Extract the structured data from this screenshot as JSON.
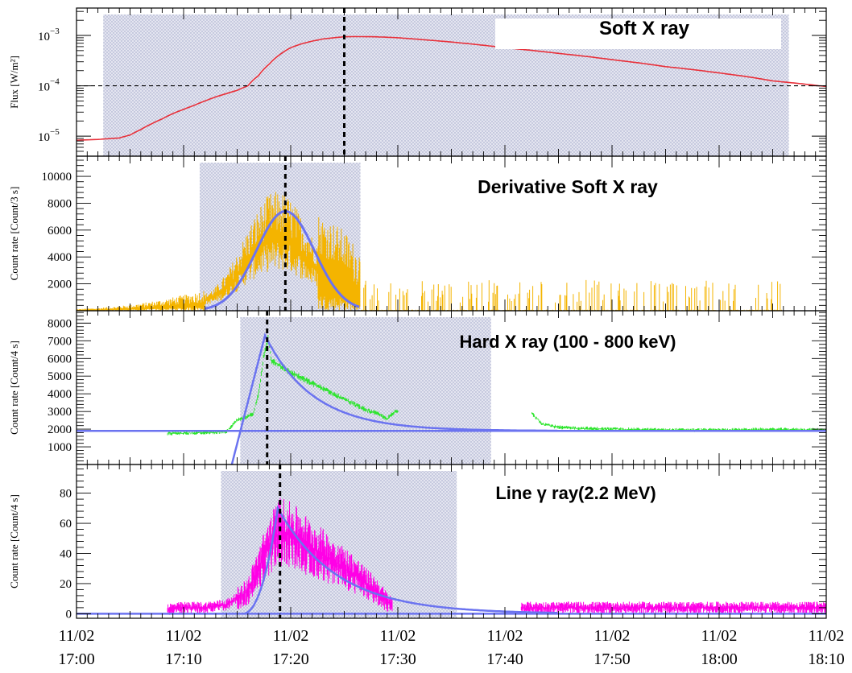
{
  "colors": {
    "soft_xray": "#e8303a",
    "derivative": "#f4b400",
    "hard_xray": "#2ee52e",
    "gamma": "#ff00e6",
    "fit": "#6b73f0",
    "shade": "#c9cce3",
    "background": "#ffffff"
  },
  "chart_data": [
    {
      "type": "line",
      "title": "Soft X ray",
      "ylabel": "Flux [W/m²]",
      "yscale": "log",
      "ylim": [
        4e-06,
        0.0035
      ],
      "yticks": [
        {
          "value": 0.001,
          "base": "10",
          "exp": "−3"
        },
        {
          "value": 0.0001,
          "base": "10",
          "exp": "−4"
        },
        {
          "value": 1e-05,
          "base": "10",
          "exp": "−5"
        }
      ],
      "xlim_min": [
        0,
        70
      ],
      "shaded_interval_min": [
        2.5,
        66.5
      ],
      "peak_time_min": 25,
      "threshold": 0.0001,
      "series": [
        {
          "x": [
            0,
            2,
            4,
            5,
            6,
            7,
            8,
            9,
            10,
            11,
            12,
            13,
            14,
            15,
            16,
            17,
            18,
            19,
            20,
            21,
            22,
            23,
            24,
            25,
            26,
            28,
            30,
            35,
            40,
            45,
            50,
            55,
            60,
            65,
            70
          ],
          "y": [
            8.3e-06,
            8.6e-06,
            9.2e-06,
            1.05e-05,
            1.35e-05,
            1.75e-05,
            2.2e-05,
            2.8e-05,
            3.4e-05,
            4.1e-05,
            5e-05,
            6e-05,
            7e-05,
            8.1e-05,
            0.0001,
            0.00016,
            0.00027,
            0.00042,
            0.00057,
            0.00068,
            0.00077,
            0.00085,
            0.0009,
            0.00094,
            0.00095,
            0.00094,
            0.0009,
            0.00074,
            0.00057,
            0.00044,
            0.00033,
            0.00024,
            0.00018,
            0.000125,
            9.65e-05
          ]
        }
      ]
    },
    {
      "type": "line",
      "title": "Derivative Soft X ray",
      "ylabel": "Count rate [Count/3 s]",
      "ylim": [
        0,
        11500
      ],
      "yticks": [
        2000,
        4000,
        6000,
        8000,
        10000
      ],
      "xlim_min": [
        0,
        70
      ],
      "shaded_interval_min": [
        11.5,
        26.5
      ],
      "peak_time_min": 19.5,
      "series": [
        {
          "name_hidden": "data",
          "x": [
            0,
            2,
            4,
            6,
            8,
            10,
            12,
            13,
            14,
            15,
            16,
            17,
            18,
            19,
            20,
            21,
            22,
            23,
            24,
            25,
            26,
            27,
            30,
            40,
            50,
            60,
            66
          ],
          "y": [
            80,
            140,
            230,
            370,
            560,
            780,
            1050,
            1500,
            2300,
            3600,
            5100,
            6400,
            7300,
            7500,
            7000,
            5900,
            4700,
            4000,
            3600,
            3000,
            2000,
            1300,
            1000,
            700,
            500,
            300,
            200
          ]
        },
        {
          "name_hidden": "gaussian-fit",
          "gauss": {
            "amplitude": 7400,
            "center": 19.5,
            "sigma": 2.7,
            "min": 12,
            "max": 26.5
          }
        }
      ]
    },
    {
      "type": "line",
      "title": "Hard X ray (100 - 800 keV)",
      "ylabel": "Count rate [Count/4 s]",
      "ylim": [
        0,
        8700
      ],
      "yticks": [
        1000,
        2000,
        3000,
        4000,
        5000,
        6000,
        7000,
        8000
      ],
      "xlim_min": [
        0,
        70
      ],
      "shaded_interval_min": [
        15.3,
        38.7
      ],
      "peak_time_min": 17.8,
      "background_level": 1900,
      "data_gap_min": [
        30,
        42.5
      ],
      "series": [
        {
          "x": [
            8.5,
            10,
            12,
            14,
            15,
            16,
            16.5,
            17,
            17.5,
            17.9,
            18.2,
            19,
            20,
            21,
            22,
            23,
            24,
            25,
            26,
            27,
            28,
            29,
            29.8,
            42.5,
            43.5,
            45,
            47,
            50,
            55,
            60,
            65,
            70
          ],
          "y": [
            1750,
            1780,
            1800,
            1850,
            2500,
            2700,
            2900,
            4000,
            6200,
            7200,
            5900,
            5600,
            5200,
            4900,
            4600,
            4300,
            4000,
            3700,
            3400,
            3100,
            2900,
            2600,
            3000,
            2900,
            2300,
            2100,
            2050,
            2000,
            1950,
            1950,
            1980,
            1950
          ]
        },
        {
          "fit": {
            "rise_from_min": 14.5,
            "peak_min": 17.6,
            "peak_value": 7300,
            "decay_tau_min": 4.5,
            "background": 1900
          }
        }
      ]
    },
    {
      "type": "line",
      "title": "Line γ ray(2.2 MeV)",
      "ylabel": "Count rate [Count/4 s]",
      "ylim": [
        -3,
        99
      ],
      "yticks": [
        0,
        20,
        40,
        60,
        80
      ],
      "xlim_min": [
        0,
        70
      ],
      "shaded_interval_min": [
        13.5,
        35.5
      ],
      "peak_time_min": 19,
      "data_gap_min": [
        29.5,
        41.5
      ],
      "series": [
        {
          "x": [
            8.5,
            10,
            12,
            14,
            15,
            16,
            17,
            18,
            19,
            20,
            21,
            22,
            23,
            24,
            25,
            26,
            27,
            28,
            29,
            29.5,
            41.5,
            45,
            50,
            55,
            60,
            65,
            70
          ],
          "y": [
            3,
            4,
            4,
            6,
            10,
            15,
            30,
            45,
            55,
            52,
            48,
            43,
            39,
            35,
            30,
            26,
            20,
            15,
            8,
            5,
            4,
            4,
            4,
            4,
            4,
            4,
            4
          ]
        },
        {
          "fit": {
            "rise_from_min": 15.5,
            "peak_min": 18.8,
            "peak_value": 70,
            "decay_tau_min": 5.5,
            "background": 0
          }
        }
      ]
    }
  ],
  "x_axis": {
    "xlim_min": [
      0,
      70
    ],
    "ticks": [
      {
        "min": 0,
        "date": "11/02",
        "time": "17:00"
      },
      {
        "min": 10,
        "date": "11/02",
        "time": "17:10"
      },
      {
        "min": 20,
        "date": "11/02",
        "time": "17:20"
      },
      {
        "min": 30,
        "date": "11/02",
        "time": "17:30"
      },
      {
        "min": 40,
        "date": "11/02",
        "time": "17:40"
      },
      {
        "min": 50,
        "date": "11/02",
        "time": "17:50"
      },
      {
        "min": 60,
        "date": "11/02",
        "time": "18:00"
      },
      {
        "min": 70,
        "date": "11/02",
        "time": "18:10"
      }
    ]
  }
}
